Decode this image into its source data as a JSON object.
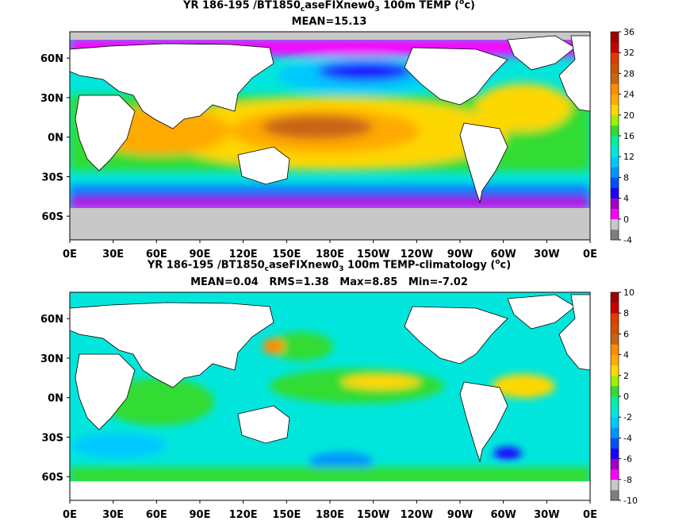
{
  "chart_data": [
    {
      "type": "heatmap",
      "title_parts": {
        "pre": "YR 186-195 /BT1850",
        "sub1": "c",
        "mid": "aseFIXnew0",
        "sub2": "3",
        "post": " 100m TEMP (",
        "sup": "o",
        "tail": "c)"
      },
      "stats": "MEAN=15.13",
      "x_ticks": [
        "0E",
        "30E",
        "60E",
        "90E",
        "120E",
        "150E",
        "180E",
        "150W",
        "120W",
        "90W",
        "60W",
        "30W",
        "0E"
      ],
      "y_ticks": [
        "60N",
        "30N",
        "0N",
        "30S",
        "60S"
      ],
      "colorbar_ticks": [
        "36",
        "32",
        "28",
        "24",
        "20",
        "16",
        "12",
        "8",
        "4",
        "0",
        "-4"
      ],
      "colorbar_range": [
        -4,
        36
      ],
      "colorbar_colors": [
        "#7f7f7f",
        "#c8c8c8",
        "#ff00ff",
        "#a000c8",
        "#1e00ff",
        "#0050ff",
        "#0096ff",
        "#00c8ff",
        "#00e6dc",
        "#00f0a0",
        "#32dc32",
        "#a0f000",
        "#ffd700",
        "#ffaa00",
        "#ff8c00",
        "#c86414",
        "#d05000",
        "#e03c00",
        "#c80000",
        "#a00000"
      ]
    },
    {
      "type": "heatmap",
      "title_parts": {
        "pre": "YR 186-195 /BT1850",
        "sub1": "c",
        "mid": "aseFIXnew0",
        "sub2": "3",
        "post": " 100m TEMP-climatology (",
        "sup": "o",
        "tail": "c)"
      },
      "stats": "MEAN=0.04   RMS=1.38   Max=8.85   Min=-7.02",
      "x_ticks": [
        "0E",
        "30E",
        "60E",
        "90E",
        "120E",
        "150E",
        "180E",
        "150W",
        "120W",
        "90W",
        "60W",
        "30W",
        "0E"
      ],
      "y_ticks": [
        "60N",
        "30N",
        "0N",
        "30S",
        "60S"
      ],
      "colorbar_ticks": [
        "10",
        "8",
        "6",
        "4",
        "2",
        "0",
        "-2",
        "-4",
        "-6",
        "-8",
        "-10"
      ],
      "colorbar_range": [
        -10,
        10
      ],
      "colorbar_colors": [
        "#7f7f7f",
        "#c8c8c8",
        "#ff00ff",
        "#a000c8",
        "#1e00ff",
        "#0050ff",
        "#0096ff",
        "#00c8ff",
        "#00e6dc",
        "#00f0a0",
        "#32dc32",
        "#a0f000",
        "#ffd700",
        "#ffaa00",
        "#ff8c00",
        "#c86414",
        "#d05000",
        "#e03c00",
        "#c80000",
        "#a00000"
      ]
    }
  ]
}
